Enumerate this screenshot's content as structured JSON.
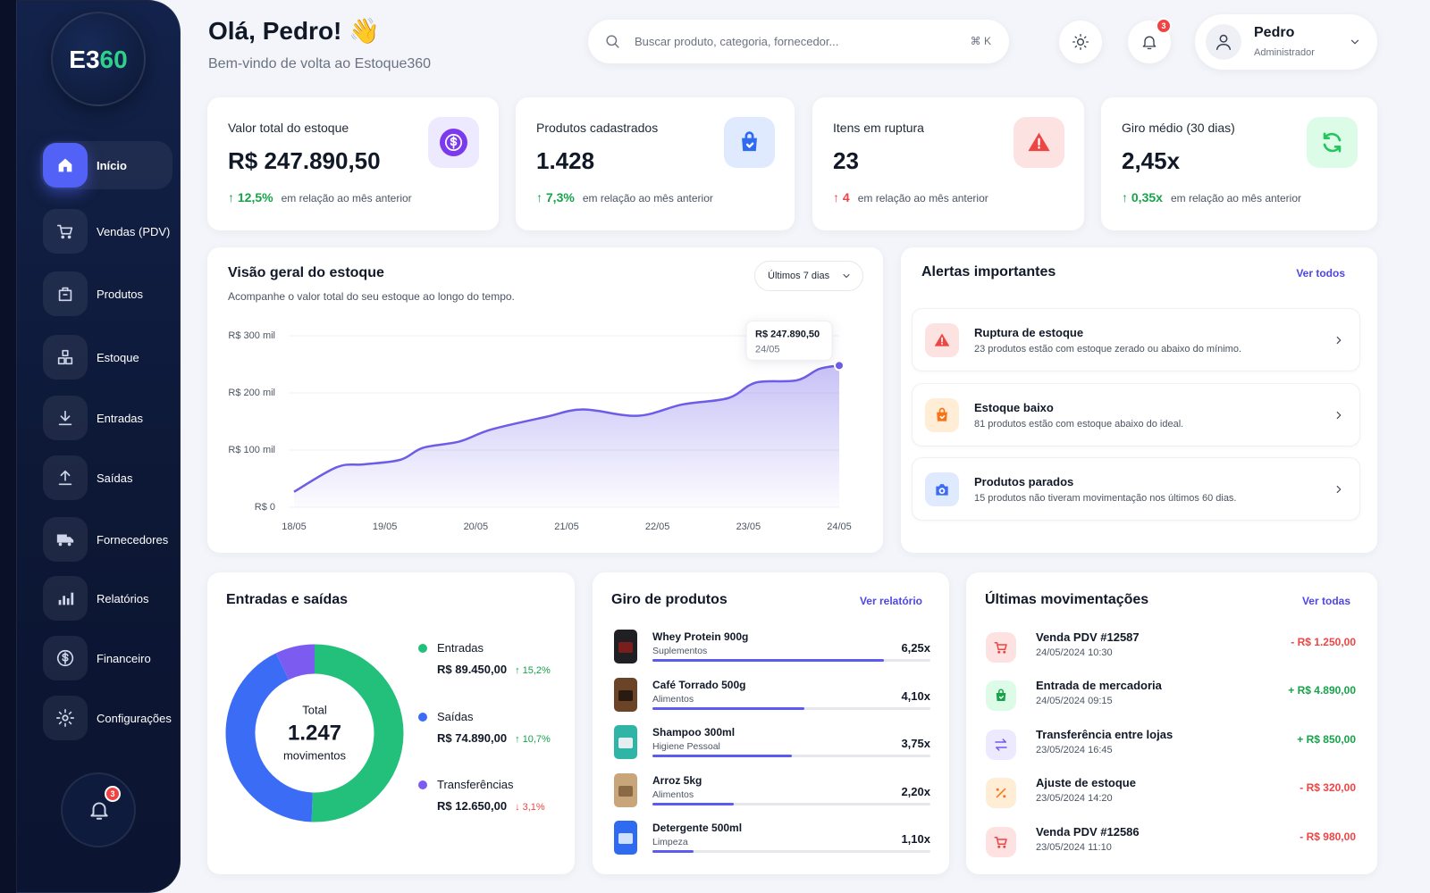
{
  "sidebar": {
    "logo": [
      "E3",
      "60"
    ],
    "nav": [
      "Início",
      "Vendas (PDV)",
      "Produtos",
      "Estoque",
      "Entradas",
      "Saídas",
      "Fornecedores",
      "Relatórios",
      "Financeiro",
      "Configurações"
    ],
    "badge": "3"
  },
  "header": {
    "greeting": "Olá, Pedro! 👋",
    "subtitle": "Bem-vindo de volta ao Estoque360",
    "search": "Buscar produto, categoria, fornecedor...",
    "shortcut": "⌘ K",
    "badge": "3",
    "user": "Pedro",
    "role": "Administrador"
  },
  "kpis": [
    {
      "label": "Valor total do estoque",
      "value": "R$ 247.890,50",
      "delta": "↑ 12,5%",
      "note": "em relação ao mês anterior",
      "tone": "positive"
    },
    {
      "label": "Produtos cadastrados",
      "value": "1.428",
      "delta": "↑ 7,3%",
      "note": "em relação ao mês anterior",
      "tone": "positive"
    },
    {
      "label": "Itens em ruptura",
      "value": "23",
      "delta": "↑ 4",
      "note": "em relação ao mês anterior",
      "tone": "negative"
    },
    {
      "label": "Giro médio (30 dias)",
      "value": "2,45x",
      "delta": "↑ 0,35x",
      "note": "em relação ao mês anterior",
      "tone": "positive"
    }
  ],
  "overview": {
    "type": "area",
    "title": "Visão geral do estoque",
    "subtitle": "Acompanhe o valor total do seu estoque ao longo do tempo.",
    "range": "Últimos 7 dias",
    "color": "#6c5ce7",
    "x": [
      18,
      18.47,
      18.77,
      19.17,
      19.42,
      19.82,
      20.17,
      20.77,
      21.18,
      21.78,
      22.28,
      22.78,
      23.08,
      23.53,
      23.78,
      24
    ],
    "values": [
      27000,
      70000,
      75000,
      83000,
      104000,
      115000,
      136000,
      158000,
      171000,
      160000,
      180000,
      191000,
      218000,
      222000,
      242000,
      247890.5
    ],
    "value_labels": [
      null,
      null,
      null,
      null,
      null,
      null,
      null,
      null,
      null,
      null,
      null,
      null,
      null,
      null,
      null,
      "R$ 247.890,50"
    ],
    "tooltip_date": "24/05",
    "xlim": [
      18,
      24
    ],
    "xticks": [
      {
        "value": 18,
        "label": "18/05"
      },
      {
        "value": 19,
        "label": "19/05"
      },
      {
        "value": 20,
        "label": "20/05"
      },
      {
        "value": 21,
        "label": "21/05"
      },
      {
        "value": 22,
        "label": "22/05"
      },
      {
        "value": 23,
        "label": "23/05"
      },
      {
        "value": 24,
        "label": "24/05"
      }
    ],
    "ylim": [
      0,
      300000
    ],
    "yticks": [
      {
        "value": 0,
        "label": "R$ 0"
      },
      {
        "value": 100000,
        "label": "R$ 100 mil"
      },
      {
        "value": 200000,
        "label": "R$ 200 mil"
      },
      {
        "value": 300000,
        "label": "R$ 300 mil"
      }
    ],
    "grid": true
  },
  "alerts": {
    "title": "Alertas importantes",
    "link": "Ver todos",
    "items": [
      {
        "title": "Ruptura de estoque",
        "text": "23 produtos estão com estoque zerado ou abaixo do mínimo.",
        "tone": "red"
      },
      {
        "title": "Estoque baixo",
        "text": "81 produtos estão com estoque abaixo do ideal.",
        "tone": "orange"
      },
      {
        "title": "Produtos parados",
        "text": "15 produtos não tiveram movimentação nos últimos 60 dias.",
        "tone": "blue"
      }
    ]
  },
  "flow": {
    "type": "donut",
    "title": "Entradas e saídas",
    "total_caption": "Total",
    "total": {
      "value": 1247,
      "label": "1.247"
    },
    "total_unit": "movimentos",
    "series": [
      {
        "name": "Entradas",
        "color": "#22c07a",
        "value": 89450,
        "value_label": "R$ 89.450,00",
        "delta": "↑ 15,2%",
        "tone": "positive"
      },
      {
        "name": "Saídas",
        "color": "#3b6cf6",
        "value": 74890,
        "value_label": "R$ 74.890,00",
        "delta": "↑ 10,7%",
        "tone": "positive"
      },
      {
        "name": "Transferências",
        "color": "#7c5cf0",
        "value": 12650,
        "value_label": "R$ 12.650,00",
        "delta": "↓ 3,1%",
        "tone": "negative"
      }
    ]
  },
  "turnover": {
    "title": "Giro de produtos",
    "link": "Ver relatório",
    "xlim": [
      0,
      7.5
    ],
    "color": "#5b5bf0",
    "items": [
      {
        "name": "Whey Protein 900g",
        "category": "Suplementos",
        "value": 6.25,
        "value_label": "6,25x"
      },
      {
        "name": "Café Torrado 500g",
        "category": "Alimentos",
        "value": 4.1,
        "value_label": "4,10x"
      },
      {
        "name": "Shampoo 300ml",
        "category": "Higiene Pessoal",
        "value": 3.75,
        "value_label": "3,75x"
      },
      {
        "name": "Arroz 5kg",
        "category": "Alimentos",
        "value": 2.2,
        "value_label": "2,20x"
      },
      {
        "name": "Detergente 500ml",
        "category": "Limpeza",
        "value": 1.1,
        "value_label": "1,10x"
      }
    ]
  },
  "movements": {
    "title": "Últimas movimentações",
    "link": "Ver todas",
    "items": [
      {
        "title": "Venda PDV #12587",
        "date": "24/05/2024 10:30",
        "amount": "- R$ 1.250,00",
        "kind": "sale",
        "tone": "out"
      },
      {
        "title": "Entrada de mercadoria",
        "date": "24/05/2024 09:15",
        "amount": "+ R$ 4.890,00",
        "kind": "entry",
        "tone": "in"
      },
      {
        "title": "Transferência entre lojas",
        "date": "23/05/2024 16:45",
        "amount": "+ R$ 850,00",
        "kind": "transfer",
        "tone": "in"
      },
      {
        "title": "Ajuste de estoque",
        "date": "23/05/2024 14:20",
        "amount": "- R$ 320,00",
        "kind": "adjust",
        "tone": "out"
      },
      {
        "title": "Venda PDV #12586",
        "date": "23/05/2024 11:10",
        "amount": "- R$ 980,00",
        "kind": "sale",
        "tone": "out"
      }
    ]
  }
}
